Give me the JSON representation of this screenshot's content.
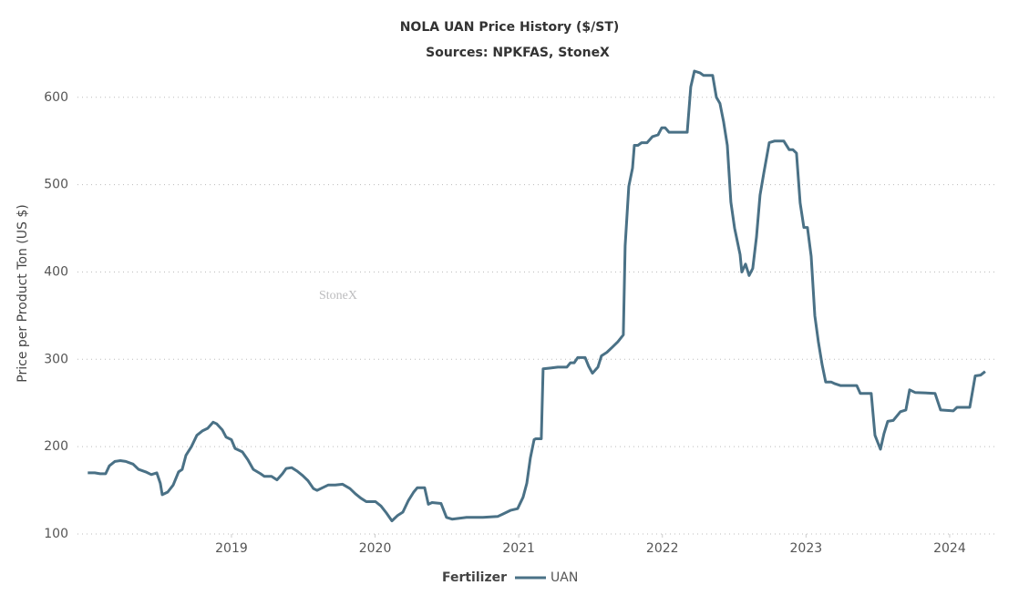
{
  "chart_data": {
    "type": "line",
    "title": "NOLA UAN Price History ($/ST)",
    "subtitle": "Sources: NPKFAS, StoneX",
    "y_label": "Price per Product Ton (US $)",
    "watermark": "StoneX",
    "legend_title": "Fertilizer",
    "x": [
      2018.0,
      2018.048,
      2018.086,
      2018.124,
      2018.15,
      2018.188,
      2018.226,
      2018.264,
      2018.315,
      2018.353,
      2018.404,
      2018.442,
      2018.48,
      2018.505,
      2018.518,
      2018.556,
      2018.594,
      2018.632,
      2018.657,
      2018.683,
      2018.721,
      2018.759,
      2018.797,
      2018.835,
      2018.873,
      2018.898,
      2018.937,
      2018.962,
      2019.0,
      2019.025,
      2019.076,
      2019.114,
      2019.152,
      2019.203,
      2019.228,
      2019.279,
      2019.317,
      2019.355,
      2019.381,
      2019.419,
      2019.457,
      2019.495,
      2019.533,
      2019.571,
      2019.596,
      2019.635,
      2019.673,
      2019.723,
      2019.774,
      2019.825,
      2019.863,
      2019.901,
      2019.939,
      2020.003,
      2020.041,
      2020.079,
      2020.117,
      2020.155,
      2020.193,
      2020.231,
      2020.269,
      2020.294,
      2020.345,
      2020.371,
      2020.396,
      2020.459,
      2020.497,
      2020.536,
      2020.586,
      2020.637,
      2020.751,
      2020.853,
      2020.891,
      2020.942,
      2020.992,
      2021.03,
      2021.056,
      2021.081,
      2021.107,
      2021.119,
      2021.157,
      2021.17,
      2021.221,
      2021.272,
      2021.335,
      2021.36,
      2021.386,
      2021.411,
      2021.462,
      2021.487,
      2021.513,
      2021.551,
      2021.576,
      2021.614,
      2021.652,
      2021.69,
      2021.728,
      2021.741,
      2021.766,
      2021.792,
      2021.805,
      2021.83,
      2021.855,
      2021.893,
      2021.931,
      2021.97,
      2021.995,
      2022.02,
      2022.046,
      2022.096,
      2022.173,
      2022.198,
      2022.223,
      2022.261,
      2022.287,
      2022.35,
      2022.376,
      2022.401,
      2022.426,
      2022.452,
      2022.477,
      2022.503,
      2022.541,
      2022.553,
      2022.579,
      2022.604,
      2022.629,
      2022.655,
      2022.68,
      2022.706,
      2022.744,
      2022.782,
      2022.845,
      2022.883,
      2022.909,
      2022.934,
      2022.959,
      2022.985,
      2023.01,
      2023.036,
      2023.061,
      2023.086,
      2023.112,
      2023.137,
      2023.175,
      2023.201,
      2023.239,
      2023.353,
      2023.378,
      2023.416,
      2023.454,
      2023.48,
      2023.518,
      2023.543,
      2023.569,
      2023.607,
      2023.657,
      2023.695,
      2023.721,
      2023.759,
      2023.898,
      2023.937,
      2024.025,
      2024.051,
      2024.14,
      2024.178,
      2024.216,
      2024.247
    ],
    "series": [
      {
        "name": "UAN",
        "color": "#4a7186",
        "values": [
          170,
          170,
          169,
          169,
          178,
          183,
          184,
          183,
          180,
          174,
          171,
          168,
          170,
          158,
          145,
          148,
          156,
          171,
          174,
          190,
          200,
          213,
          218,
          221,
          228,
          226,
          219,
          211,
          208,
          198,
          194,
          185,
          174,
          169,
          166,
          166,
          162,
          169,
          175,
          176,
          172,
          167,
          161,
          152,
          150,
          153,
          156,
          156,
          157,
          152,
          146,
          141,
          137,
          137,
          132,
          124,
          115,
          121,
          125,
          138,
          148,
          153,
          153,
          134,
          136,
          135,
          119,
          117,
          118,
          119,
          119,
          120,
          123,
          127,
          129,
          142,
          158,
          187,
          208,
          209,
          209,
          289,
          290,
          291,
          291,
          296,
          296,
          302,
          302,
          292,
          284,
          291,
          304,
          308,
          314,
          320,
          328,
          430,
          498,
          519,
          545,
          545,
          548,
          548,
          555,
          557,
          565,
          565,
          560,
          560,
          560,
          612,
          630,
          628,
          625,
          625,
          600,
          593,
          572,
          545,
          480,
          450,
          420,
          400,
          409,
          396,
          404,
          440,
          488,
          513,
          548,
          550,
          550,
          540,
          540,
          536,
          479,
          451,
          451,
          418,
          350,
          320,
          294,
          274,
          274,
          272,
          270,
          270,
          261,
          261,
          261,
          213,
          197,
          215,
          229,
          230,
          240,
          242,
          265,
          262,
          261,
          242,
          241,
          245,
          245,
          281,
          282,
          286
        ]
      }
    ],
    "xlim": [
      2017.928,
      2024.324
    ],
    "xticks": [
      2019,
      2020,
      2021,
      2022,
      2023,
      2024
    ],
    "ylim": [
      100,
      630
    ],
    "yticks": [
      100,
      200,
      300,
      400,
      500,
      600
    ],
    "grid": true
  }
}
